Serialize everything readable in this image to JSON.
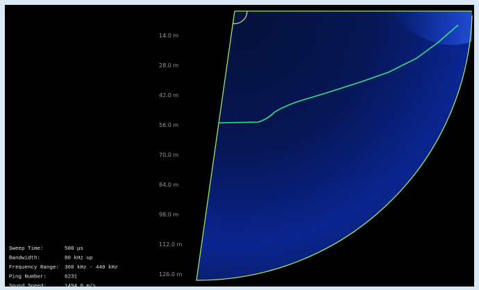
{
  "range_labels": [
    "14.0 m",
    "28.0 m",
    "42.0 m",
    "56.0 m",
    "70.0 m",
    "84.0 m",
    "98.0 m",
    "112.0 m",
    "126.0 m"
  ],
  "info": [
    {
      "label": "Sweep Time:",
      "value": "500 µs"
    },
    {
      "label": "Bandwidth:",
      "value": "80 kHz up"
    },
    {
      "label": "Frequency Range:",
      "value": "360 kHz - 440 kHz"
    },
    {
      "label": "Ping Number:",
      "value": "6231"
    },
    {
      "label": "Sound Speed:",
      "value": "1494.0 m/s"
    }
  ]
}
